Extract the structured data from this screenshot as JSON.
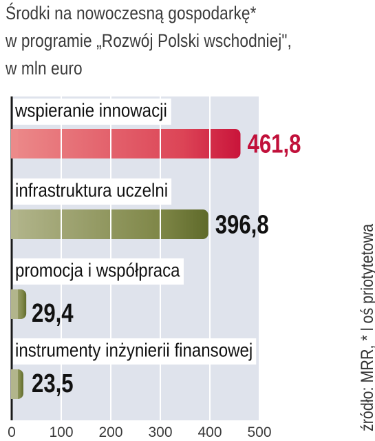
{
  "header": {
    "title_line1": "Środki na nowoczesną gospodarkę*",
    "title_line2": "w programie „Rozwój Polski wschodniej\",",
    "title_line3": "w mln euro"
  },
  "source_note": "źródło: MRR, * l oś priotytetowa",
  "colors": {
    "background": "#ffffff",
    "plot_band": "#dfe3ec",
    "highlight_bar": "#c9143a",
    "highlight_label": "#c1103a",
    "olive_bar": "#5f6a2a",
    "text_dark": "#111111",
    "axis_text": "#3a3a3a"
  },
  "chart_data": {
    "type": "bar",
    "orientation": "horizontal",
    "categories": [
      "wspieranie innowacji",
      "infrastruktura uczelni",
      "promocja i współpraca",
      "instrumenty inżynierii finansowej"
    ],
    "values": [
      461.8,
      396.8,
      29.4,
      23.5
    ],
    "value_labels": [
      "461,8",
      "396,8",
      "29,4",
      "23,5"
    ],
    "xlim": [
      0,
      500
    ],
    "xticks": [
      0,
      100,
      200,
      300,
      400,
      500
    ],
    "xtick_labels": [
      "0",
      "100",
      "200",
      "300",
      "400",
      "500"
    ],
    "grid": true,
    "highlight_index": 0
  }
}
